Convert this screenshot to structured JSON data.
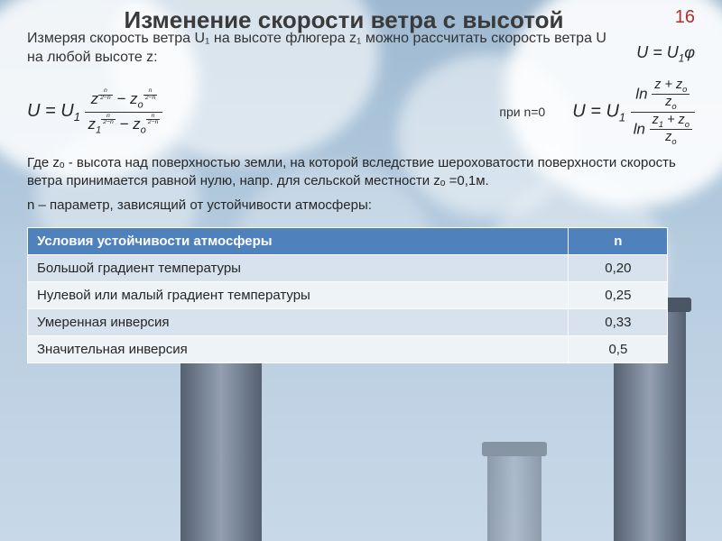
{
  "page_number": "16",
  "title": "Изменение скорости ветра с высотой",
  "intro": "Измеряя скорость ветра U₁ на высоте флюгера z₁ можно рассчитать скорость ветра U  на любой высоте z:",
  "formula_simple_html": "U = U<sub>1</sub>&phi;",
  "formula_main_html": "U = U<sub>1</sub> <span class=\"frac\"><span class=\"num\">z<sup><span class=\"sfrac\"><span class=\"num\">n</span><span class=\"den\">2&minus;n</span></span></sup> &minus; z<sub>o</sub><sup><span class=\"sfrac\"><span class=\"num\">n</span><span class=\"den\">2&minus;n</span></span></sup></span><span class=\"den\">z<sub>1</sub><sup><span class=\"sfrac\"><span class=\"num\">n</span><span class=\"den\">2&minus;n</span></span></sup> &minus; z<sub>o</sub><sup><span class=\"sfrac\"><span class=\"num\">n</span><span class=\"den\">2&minus;n</span></span></sup></span></span>",
  "cond_label": "при n=0",
  "formula_n0_html": "U = U<sub>1</sub> <span class=\"frac\"><span class=\"num\">ln <span class=\"frac\"><span class=\"num\">z + z<sub>o</sub></span><span class=\"den\">z<sub>o</sub></span></span></span><span class=\"den\">ln <span class=\"frac\"><span class=\"num\">z<sub>1</sub> + z<sub>o</sub></span><span class=\"den\">z<sub>o</sub></span></span></span></span>",
  "desc1": "Где  zₒ - высота над поверхностью земли, на которой  вследствие шероховатости поверхности скорость ветра принимается равной нулю, напр. для сельской местности zₒ =0,1м.",
  "desc2": "n – параметр, зависящий от устойчивости атмосферы:",
  "table": {
    "header_cond": "Условия устойчивости атмосферы",
    "header_n": "n",
    "rows": [
      {
        "cond": "Большой градиент температуры",
        "n": "0,20"
      },
      {
        "cond": "Нулевой или малый градиент температуры",
        "n": "0,25"
      },
      {
        "cond": "Умеренная инверсия",
        "n": "0,33"
      },
      {
        "cond": "Значительная инверсия",
        "n": "0,5"
      }
    ]
  },
  "colors": {
    "table_header_bg": "#4f81bd",
    "pagenum": "#b03030"
  }
}
